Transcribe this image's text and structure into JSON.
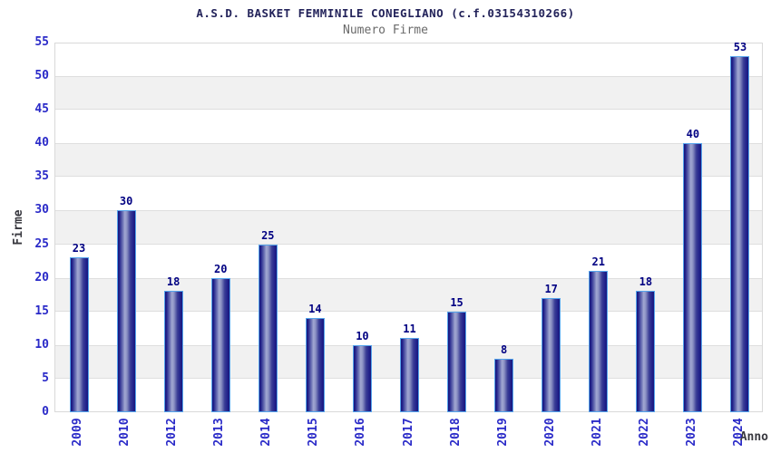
{
  "header": {
    "title": "A.S.D. BASKET FEMMINILE CONEGLIANO (c.f.03154310266)",
    "subtitle": "Numero Firme"
  },
  "chart_data": {
    "type": "bar",
    "title": "A.S.D. BASKET FEMMINILE CONEGLIANO (c.f.03154310266)",
    "subtitle": "Numero Firme",
    "xlabel": "Anno",
    "ylabel": "Firme",
    "categories": [
      "2009",
      "2010",
      "2012",
      "2013",
      "2014",
      "2015",
      "2016",
      "2017",
      "2018",
      "2019",
      "2020",
      "2021",
      "2022",
      "2023",
      "2024"
    ],
    "values": [
      23,
      30,
      18,
      20,
      25,
      14,
      10,
      11,
      15,
      8,
      17,
      21,
      18,
      40,
      53
    ],
    "ylim": [
      0,
      55
    ],
    "ytick_step": 5,
    "yticks": [
      0,
      5,
      10,
      15,
      20,
      25,
      30,
      35,
      40,
      45,
      50,
      55
    ],
    "grid": "alternating-horizontal-bands",
    "legend": "none",
    "bar_value_labels": true
  },
  "colors": {
    "title": "#23235a",
    "subtitle": "#6a6a6a",
    "tick_label": "#2a2ac8",
    "value_label": "#000082",
    "axis_title": "#38383f",
    "bar_edge_dark": "#17177c",
    "bar_mid": "#3a3d96",
    "bar_highlight": "#a2a8d2",
    "bar_border": "#55a4ec",
    "band_fill": "#f1f1f1",
    "band_line": "#dedede",
    "plot_border": "#d9d9d9",
    "background": "#ffffff"
  }
}
